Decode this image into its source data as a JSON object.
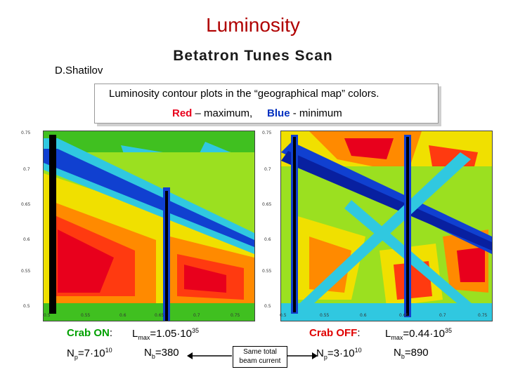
{
  "header": {
    "title": "Luminosity",
    "author": "D.Shatilov",
    "subtitle": "Betatron Tunes Scan"
  },
  "legend": {
    "line1": "Luminosity contour plots in the “geographical map” colors.",
    "red_word": "Red",
    "red_text": " – maximum,",
    "blue_word": "Blue",
    "blue_text": " - minimum"
  },
  "axes": {
    "left_y_ticks": [
      "0.75",
      "0.7",
      "0.65",
      "0.6",
      "0.55",
      "0.5"
    ],
    "left_x_ticks": [
      "0.5",
      "0.55",
      "0.6",
      "0.65",
      "0.7",
      "0.75"
    ],
    "right_y_ticks": [
      "0.75",
      "0.7",
      "0.65",
      "0.6",
      "0.55",
      "0.5"
    ],
    "right_x_ticks": [
      "0.5",
      "0.55",
      "0.6",
      "0.65",
      "0.7",
      "0.75"
    ]
  },
  "captions": {
    "left": {
      "crab": "Crab ON",
      "colon": ":",
      "lmax_prefix": "L",
      "lmax_sub": "max",
      "lmax_value": "=1.05·10",
      "lmax_exp": "35",
      "np_prefix": "N",
      "np_sub": "p",
      "np_value": "=7·10",
      "np_exp": "10",
      "nb_prefix": "N",
      "nb_sub": "b",
      "nb_value": "=380"
    },
    "right": {
      "crab": "Crab OFF",
      "colon": ":",
      "lmax_prefix": "L",
      "lmax_sub": "max",
      "lmax_value": "=0.44·10",
      "lmax_exp": "35",
      "np_prefix": "N",
      "np_sub": "p",
      "np_value": "=3·10",
      "np_exp": "10",
      "nb_prefix": "N",
      "nb_sub": "b",
      "nb_value": "=890"
    }
  },
  "note": {
    "line1": "Same total",
    "line2": "beam current"
  },
  "colors": {
    "red": "#e8001c",
    "orange": "#ff8a00",
    "yellow": "#f0e000",
    "green": "#40c020",
    "cyan": "#30c8e0",
    "blue": "#1040d0",
    "black": "#000000"
  }
}
